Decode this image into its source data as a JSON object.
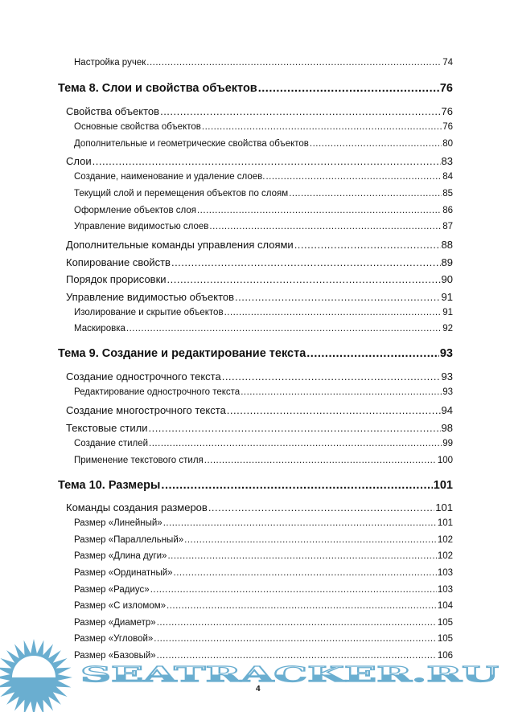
{
  "toc": [
    {
      "level": 3,
      "title": "Настройка ручек",
      "page": "74"
    },
    {
      "level": 1,
      "title": "Тема 8. Слои и свойства объектов",
      "page": "76"
    },
    {
      "level": 2,
      "title": "Свойства объектов",
      "page": "76"
    },
    {
      "level": 3,
      "title": "Основные свойства объектов",
      "page": "76"
    },
    {
      "level": 3,
      "title": "Дополнительные и геометрические свойства объектов",
      "page": "80"
    },
    {
      "level": 2,
      "title": "Слои",
      "page": "83"
    },
    {
      "level": 3,
      "title": "Создание, наименование и удаление слоев.",
      "page": "84"
    },
    {
      "level": 3,
      "title": "Текущий слой и перемещения объектов по слоям",
      "page": "85"
    },
    {
      "level": 3,
      "title": "Оформление объектов слоя",
      "page": "86"
    },
    {
      "level": 3,
      "title": "Управление видимостью слоев",
      "page": "87"
    },
    {
      "level": 2,
      "title": "Дополнительные команды управления слоями",
      "page": "88"
    },
    {
      "level": 2,
      "title": "Копирование свойств",
      "page": "89"
    },
    {
      "level": 2,
      "title": "Порядок прорисовки",
      "page": "90"
    },
    {
      "level": 2,
      "title": "Управление видимостью объектов",
      "page": "91"
    },
    {
      "level": 3,
      "title": "Изолирование и скрытие объектов",
      "page": "91"
    },
    {
      "level": 3,
      "title": "Маскировка",
      "page": "92"
    },
    {
      "level": 1,
      "title": "Тема 9. Создание и редактирование текста",
      "page": "93"
    },
    {
      "level": 2,
      "title": "Создание однострочного текста",
      "page": "93"
    },
    {
      "level": 3,
      "title": "Редактирование однострочного текста",
      "page": "93"
    },
    {
      "level": 2,
      "title": "Создание многострочного текста",
      "page": "94"
    },
    {
      "level": 2,
      "title": "Текстовые стили",
      "page": "98"
    },
    {
      "level": 3,
      "title": "Создание стилей",
      "page": "99"
    },
    {
      "level": 3,
      "title": "Применение текстового стиля",
      "page": "100"
    },
    {
      "level": 1,
      "title": "Тема 10. Размеры",
      "page": "101"
    },
    {
      "level": 2,
      "title": "Команды создания размеров",
      "page": "101"
    },
    {
      "level": 3,
      "title": "Размер «Линейный»",
      "page": "101"
    },
    {
      "level": 3,
      "title": "Размер «Параллельный»",
      "page": "102"
    },
    {
      "level": 3,
      "title": "Размер «Длина дуги»",
      "page": "102"
    },
    {
      "level": 3,
      "title": "Размер «Ординатный»",
      "page": "103"
    },
    {
      "level": 3,
      "title": "Размер «Радиус»",
      "page": "103"
    },
    {
      "level": 3,
      "title": "Размер «С изломом»",
      "page": "104"
    },
    {
      "level": 3,
      "title": "Размер «Диаметр»",
      "page": "105"
    },
    {
      "level": 3,
      "title": "Размер «Угловой»",
      "page": "105"
    },
    {
      "level": 3,
      "title": "Размер «Базовый»",
      "page": "106"
    }
  ],
  "page_number": "4",
  "watermark": {
    "text": "SEATRACKER.RU",
    "color": "#6aaed0"
  }
}
